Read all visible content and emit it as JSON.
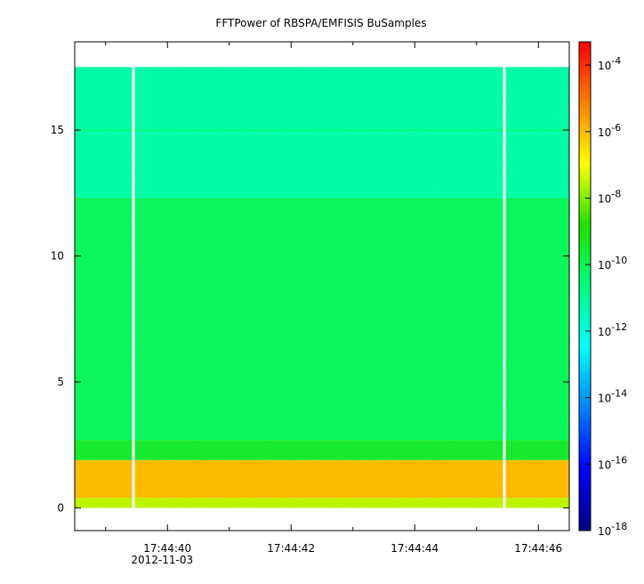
{
  "chart_data": {
    "type": "heatmap",
    "title": "FFTPower of RBSPA/EMFISIS  BuSamples",
    "xlabel": "",
    "ylabel": "",
    "x_ticks": [
      {
        "label": "17:44:40",
        "sublabel": "2012-11-03",
        "t": 39.8
      },
      {
        "label": "17:44:42",
        "sublabel": "",
        "t": 41.8
      },
      {
        "label": "17:44:44",
        "sublabel": "",
        "t": 43.8
      },
      {
        "label": "17:44:46",
        "sublabel": "",
        "t": 45.8
      }
    ],
    "x_minor_ticks": [
      38.8,
      40.8,
      42.8,
      44.8
    ],
    "xlim": [
      38.3,
      46.3
    ],
    "y_ticks": [
      0,
      5,
      10,
      15
    ],
    "ylim": [
      -0.9,
      18.5
    ],
    "data_extent": {
      "x": [
        38.3,
        46.3
      ],
      "y": [
        0,
        17.5
      ]
    },
    "data_gaps_t": [
      39.25,
      45.25
    ],
    "colorbar": {
      "scale": "log",
      "range": [
        -18,
        -3.3
      ],
      "ticks": [
        {
          "base": "10",
          "exp": "-4",
          "value": -4
        },
        {
          "base": "10",
          "exp": "-6",
          "value": -6
        },
        {
          "base": "10",
          "exp": "-8",
          "value": -8
        },
        {
          "base": "10",
          "exp": "-10",
          "value": -10
        },
        {
          "base": "10",
          "exp": "-12",
          "value": -12
        },
        {
          "base": "10",
          "exp": "-14",
          "value": -14
        },
        {
          "base": "10",
          "exp": "-16",
          "value": -16
        },
        {
          "base": "10",
          "exp": "-18",
          "value": -18
        }
      ]
    },
    "bands": [
      {
        "y": [
          0.0,
          0.4
        ],
        "log_power": -7.5
      },
      {
        "y": [
          0.4,
          1.9
        ],
        "log_power": -6.0
      },
      {
        "y": [
          1.9,
          2.7
        ],
        "log_power": -9.5
      },
      {
        "y": [
          2.7,
          12.3
        ],
        "log_power": -10.2
      },
      {
        "y": [
          12.3,
          17.5
        ],
        "log_power": -11.3
      }
    ],
    "lines": [
      {
        "y": 15.0,
        "log_power": -10.6
      }
    ]
  }
}
